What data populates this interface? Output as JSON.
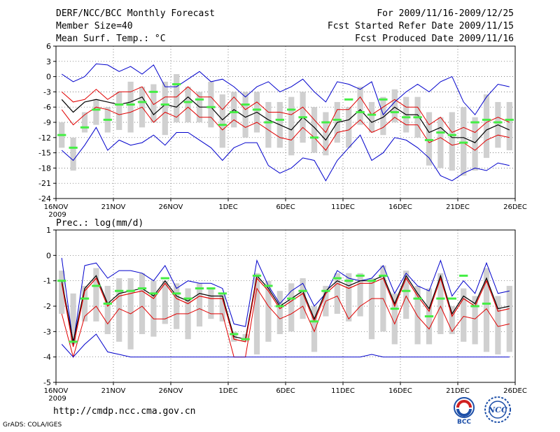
{
  "header": {
    "title": "DERF/NCC/BCC Monthly Forecast",
    "member_size": "Member Size=40",
    "variable": "Mean Surf. Temp.: °C",
    "period": "For 2009/11/16-2009/12/25",
    "start_date": "Fcst Started Refer Date 2009/11/15",
    "produced_date": "Fcst Produced Date 2009/11/16"
  },
  "footer": {
    "url": "http://cmdp.ncc.cma.gov.cn",
    "credit": "GrADS: COLA/IGES",
    "logo_bcc": "BCC",
    "logo_ncc": "NCC"
  },
  "colors": {
    "ensemble_max_min": "#0000cc",
    "spread": "#e00000",
    "mean": "#000000",
    "box": "#d0d0d0",
    "observed": "#44ee44",
    "grid": "#555555"
  },
  "chart_data": [
    {
      "type": "line",
      "title": "Mean Surf. Temp.: °C",
      "x_tick_labels": [
        "16NOV",
        "21NOV",
        "26NOV",
        "1DEC",
        "6DEC",
        "11DEC",
        "16DEC",
        "21DEC",
        "26DEC"
      ],
      "x_year_label": "2009",
      "x_days": 40,
      "y_ticks": [
        6,
        3,
        0,
        -3,
        -6,
        -9,
        -12,
        -15,
        -18,
        -21,
        -24
      ],
      "ylim": [
        -24,
        6
      ],
      "series": [
        {
          "name": "max",
          "color": "#0000cc",
          "values": [
            0.5,
            -1,
            0,
            2.5,
            2.3,
            1,
            2,
            0.5,
            2.3,
            -2,
            -2,
            -0.5,
            1,
            -1,
            -0.5,
            -2,
            -4,
            -2,
            -1,
            -3,
            -2,
            -0.5,
            -3,
            -5,
            -1,
            -1.5,
            -2.5,
            -1,
            -7.5,
            -5,
            -3,
            -1.5,
            -3,
            -1,
            0,
            -5,
            -7.5,
            -4,
            -1.5,
            -2
          ]
        },
        {
          "name": "upper",
          "color": "#e00000",
          "values": [
            -3,
            -5,
            -4.5,
            -2.5,
            -4.5,
            -3,
            -3,
            -2,
            -5.5,
            -4,
            -4,
            -2,
            -4,
            -4,
            -6.5,
            -4,
            -6.5,
            -5,
            -7,
            -7,
            -7.5,
            -6,
            -8.5,
            -11,
            -6.5,
            -6.5,
            -4,
            -7.5,
            -6,
            -4.5,
            -6,
            -6,
            -9.5,
            -8,
            -11,
            -10,
            -11,
            -9,
            -8,
            -9
          ]
        },
        {
          "name": "mean",
          "color": "#000000",
          "values": [
            -4.5,
            -7,
            -5,
            -4.5,
            -5,
            -5.5,
            -5,
            -4,
            -7.5,
            -5.5,
            -6,
            -4,
            -6,
            -6,
            -8.5,
            -6.5,
            -8,
            -7,
            -8.5,
            -9.5,
            -10.5,
            -8,
            -10,
            -12.5,
            -9,
            -8.5,
            -6.5,
            -9,
            -8,
            -6,
            -7.5,
            -7.5,
            -11,
            -10,
            -12,
            -12,
            -13,
            -10.5,
            -9.5,
            -10.5
          ]
        },
        {
          "name": "lower",
          "color": "#e00000",
          "values": [
            -6.5,
            -9.5,
            -7.5,
            -6,
            -6.5,
            -7.5,
            -7,
            -6,
            -9,
            -7,
            -8,
            -6,
            -8,
            -8,
            -10.5,
            -8.5,
            -10,
            -9,
            -10.5,
            -12,
            -12.5,
            -10,
            -12,
            -14.5,
            -11,
            -10.5,
            -8.5,
            -11,
            -10,
            -8,
            -9.5,
            -9.5,
            -13,
            -12,
            -13.5,
            -13,
            -14.5,
            -12.5,
            -11.5,
            -12
          ]
        },
        {
          "name": "min",
          "color": "#0000cc",
          "values": [
            -14.5,
            -16.5,
            -13.5,
            -10,
            -14.5,
            -12.5,
            -13.5,
            -13,
            -11.5,
            -13.5,
            -11,
            -11,
            -12.5,
            -14,
            -16.5,
            -14,
            -13,
            -13,
            -17.5,
            -19,
            -18,
            -16,
            -16.5,
            -20.5,
            -16.5,
            -14,
            -11.5,
            -16.5,
            -15,
            -12,
            -12.5,
            -14,
            -16,
            -19.5,
            -20.5,
            -19,
            -18,
            -18.5,
            -17,
            -17.5
          ]
        },
        {
          "name": "observed",
          "color": "#44ee44",
          "values": [
            -11.5,
            -14,
            -10,
            -6.5,
            -8.5,
            -5.5,
            -5.5,
            -5,
            -3,
            -5.5,
            -1.5,
            -5,
            -4.5,
            -6,
            -9.5,
            -7,
            -5.5,
            -6.5,
            -9,
            -8.5,
            -6.5,
            -8,
            -12,
            -9,
            -8.5,
            -4.5,
            -7,
            -7.5,
            -4.5,
            -7,
            -8,
            -8,
            -12.5,
            -11,
            -11.5,
            -13,
            -9,
            -8.5,
            -9,
            -8.5
          ]
        }
      ],
      "box_high": [
        -9,
        -12,
        -7,
        -4.5,
        -6,
        -3,
        -1,
        -2,
        -1.5,
        -1,
        0.5,
        -2,
        -3,
        -1,
        -3.5,
        -3,
        -3,
        -3,
        -5,
        -5,
        -4,
        -3,
        -6,
        -7,
        -5,
        -6,
        -2,
        -5,
        -4,
        -2.5,
        -4,
        -4,
        -7,
        -8,
        -7,
        -6,
        -8,
        -3.5,
        -5,
        -5
      ],
      "box_low": [
        -14,
        -18.5,
        -11,
        -9.5,
        -11,
        -10.5,
        -11,
        -10,
        -9,
        -11.5,
        -9,
        -9,
        -9,
        -10,
        -14,
        -10,
        -12,
        -11,
        -14,
        -14,
        -15.5,
        -13,
        -15,
        -15.5,
        -13,
        -14,
        -9.5,
        -11,
        -11.5,
        -9,
        -11,
        -12,
        -17.5,
        -18,
        -18.5,
        -19.5,
        -18.5,
        -16,
        -14,
        -14.5
      ]
    },
    {
      "type": "line",
      "title": "Prec.: log(mm/d)",
      "x_tick_labels": [
        "16NOV",
        "21NOV",
        "26NOV",
        "1DEC",
        "6DEC",
        "11DEC",
        "16DEC",
        "21DEC",
        "26DEC"
      ],
      "x_year_label": "2009",
      "x_days": 40,
      "y_ticks": [
        1,
        0,
        -1,
        -2,
        -3,
        -4,
        -5
      ],
      "ylim": [
        -5,
        1
      ],
      "series": [
        {
          "name": "max",
          "color": "#0000cc",
          "values": [
            -0.1,
            -3.5,
            -0.4,
            -0.3,
            -0.9,
            -0.6,
            -0.6,
            -0.7,
            -1,
            -0.4,
            -1.3,
            -1,
            -1.1,
            -1.1,
            -1.3,
            -2.7,
            -2.8,
            -0.2,
            -1.2,
            -1.9,
            -1.4,
            -1.1,
            -2,
            -1.5,
            -0.6,
            -0.9,
            -1,
            -0.9,
            -0.4,
            -1.5,
            -0.7,
            -1.2,
            -1.4,
            -0.2,
            -1.6,
            -1,
            -1.5,
            -0.3,
            -1.5,
            -1.4
          ]
        },
        {
          "name": "mean_black",
          "color": "#000000",
          "values": [
            -1,
            -3.4,
            -1.3,
            -0.8,
            -1.9,
            -1.5,
            -1.4,
            -1.3,
            -1.6,
            -1,
            -1.6,
            -1.8,
            -1.5,
            -1.6,
            -1.6,
            -3.2,
            -3.3,
            -0.8,
            -1.3,
            -2,
            -1.7,
            -1.4,
            -2.5,
            -1.4,
            -1,
            -1.2,
            -1,
            -1,
            -0.8,
            -1.9,
            -0.8,
            -1.5,
            -2.1,
            -0.8,
            -2.3,
            -1.6,
            -1.9,
            -0.9,
            -2.1,
            -2
          ]
        },
        {
          "name": "mean_red",
          "color": "#e00000",
          "values": [
            -1.1,
            -3.6,
            -1.4,
            -0.9,
            -2,
            -1.6,
            -1.5,
            -1.4,
            -1.7,
            -1.1,
            -1.7,
            -1.9,
            -1.6,
            -1.7,
            -1.7,
            -3.3,
            -3.4,
            -0.9,
            -1.4,
            -2.1,
            -1.8,
            -1.5,
            -2.6,
            -1.5,
            -1.1,
            -1.3,
            -1.1,
            -1.1,
            -0.9,
            -2,
            -0.9,
            -1.6,
            -2.2,
            -0.9,
            -2.4,
            -1.7,
            -2,
            -1,
            -2.2,
            -2.1
          ]
        },
        {
          "name": "lower",
          "color": "#e00000",
          "values": [
            -2.3,
            -4,
            -2.4,
            -2,
            -2.7,
            -2.1,
            -2.3,
            -2,
            -2.5,
            -2.5,
            -2.3,
            -2.3,
            -2.1,
            -2.3,
            -2.3,
            -4,
            -4,
            -1.3,
            -2,
            -2.5,
            -2.3,
            -2,
            -3,
            -1.8,
            -1.6,
            -2.5,
            -2,
            -1.7,
            -1.7,
            -2.7,
            -1.6,
            -2.4,
            -2.9,
            -2,
            -3,
            -2.4,
            -2.5,
            -2.1,
            -2.8,
            -2.7
          ]
        },
        {
          "name": "min",
          "color": "#0000cc",
          "values": [
            -3.5,
            -4,
            -3.5,
            -3.1,
            -3.8,
            -3.9,
            -4,
            -4,
            -4,
            -4,
            -4,
            -4,
            -4,
            -4,
            -4,
            -4,
            -4,
            -4,
            -4,
            -4,
            -4,
            -4,
            -4,
            -4,
            -4,
            -4,
            -4,
            -3.9,
            -4,
            -4,
            -4,
            -4,
            -4,
            -4,
            -4,
            -4,
            -4,
            -4,
            -4,
            -4
          ]
        },
        {
          "name": "observed",
          "color": "#44ee44",
          "values": [
            -1,
            -3.4,
            -1.7,
            -1.2,
            -1.9,
            -1.4,
            -1.4,
            -1.3,
            -1.5,
            -0.9,
            -1.5,
            -1.7,
            -1.3,
            -1.3,
            -1.5,
            -3.1,
            -3.3,
            -0.8,
            -1.2,
            -2,
            -1.7,
            -1.4,
            -2.6,
            -1.4,
            -0.9,
            -1,
            -0.8,
            -1,
            -0.8,
            -2.1,
            -1.4,
            -1.7,
            -2.4,
            -1.7,
            -1.7,
            -0.8,
            -2,
            -1.9
          ]
        },
        {
          "name": "observed_extra",
          "color": "#44ee44",
          "values": [
            -0.7,
            -1.3
          ]
        }
      ],
      "box_high": [
        -0.6,
        -1.5,
        -1.2,
        -0.5,
        -1.2,
        -0.9,
        -0.9,
        -0.7,
        -1,
        -1,
        -1.1,
        -1.3,
        -1.1,
        -1.3,
        -1.5,
        -3,
        -3.1,
        -0.7,
        -1,
        -1.4,
        -1.1,
        -0.9,
        -2,
        -1.2,
        -0.7,
        -0.7,
        -0.7,
        -0.9,
        -0.4,
        -1.5,
        -0.6,
        -1.2,
        -1.3,
        -0.7,
        -2,
        -1.3,
        -1.6,
        -0.5,
        -1.6,
        -1.2
      ],
      "box_low": [
        -2.3,
        -3.5,
        -2.6,
        -2.6,
        -3.1,
        -3.4,
        -3.7,
        -3.1,
        -3.2,
        -2.7,
        -2.9,
        -3.3,
        -2.8,
        -2.5,
        -2.6,
        -3.4,
        -3.4,
        -3.9,
        -3.4,
        -3.1,
        -3,
        -2.5,
        -3.8,
        -2.4,
        -2.3,
        -2.6,
        -2.4,
        -3.3,
        -3,
        -3.5,
        -2.5,
        -3.5,
        -3.5,
        -3.1,
        -3.1,
        -3.4,
        -3.5,
        -3.8,
        -3.9,
        -3.8
      ]
    }
  ]
}
